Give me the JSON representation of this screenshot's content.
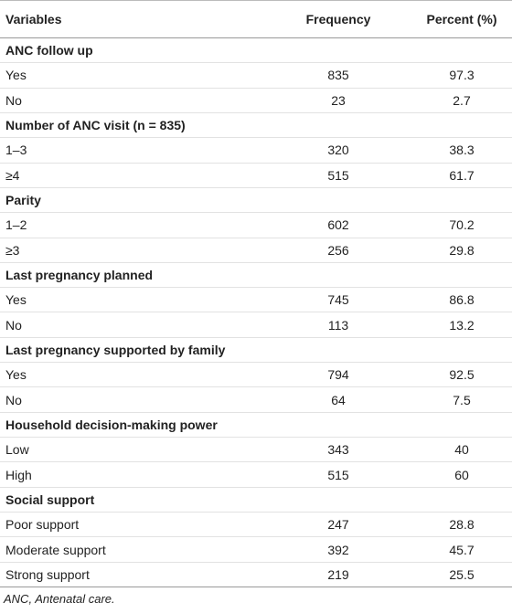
{
  "table": {
    "header": [
      "Variables",
      "Frequency",
      "Percent (%)"
    ],
    "sections": [
      {
        "label": "ANC follow up",
        "rows": [
          [
            "Yes",
            835,
            97.3
          ],
          [
            "No",
            23,
            2.7
          ]
        ]
      },
      {
        "label": "Number of ANC visit (n = 835)",
        "rows": [
          [
            "1–3",
            320,
            38.3
          ],
          [
            "≥4",
            515,
            61.7
          ]
        ]
      },
      {
        "label": "Parity",
        "rows": [
          [
            "1–2",
            602,
            70.2
          ],
          [
            "≥3",
            256,
            29.8
          ]
        ]
      },
      {
        "label": "Last pregnancy planned",
        "rows": [
          [
            "Yes",
            745,
            86.8
          ],
          [
            "No",
            113,
            13.2
          ]
        ]
      },
      {
        "label": "Last pregnancy supported by family",
        "rows": [
          [
            "Yes",
            794,
            92.5
          ],
          [
            "No",
            64,
            7.5
          ]
        ]
      },
      {
        "label": "Household decision-making power",
        "rows": [
          [
            "Low",
            343,
            40
          ],
          [
            "High",
            515,
            60
          ]
        ]
      },
      {
        "label": "Social support",
        "rows": [
          [
            "Poor support",
            247,
            28.8
          ],
          [
            "Moderate support",
            392,
            45.7
          ],
          [
            "Strong support",
            219,
            25.5
          ]
        ]
      }
    ],
    "footnote": "ANC, Antenatal care."
  }
}
